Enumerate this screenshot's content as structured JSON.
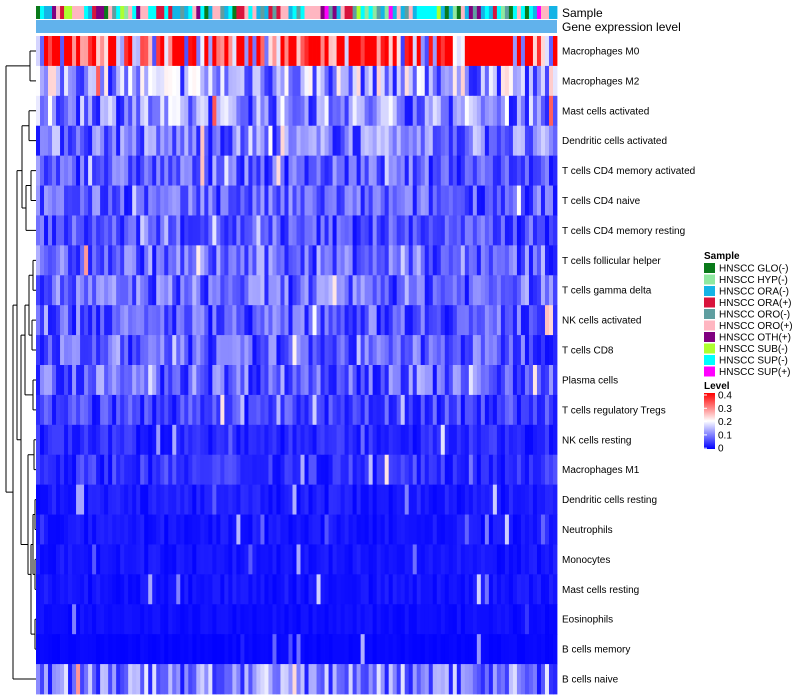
{
  "chart_data": {
    "type": "heatmap",
    "title": "",
    "annotation_rows": [
      "Sample",
      "Gene expression level"
    ],
    "rows": [
      {
        "label": "Macrophages M0",
        "mean": 0.33
      },
      {
        "label": "Macrophages M2",
        "mean": 0.13
      },
      {
        "label": "Mast cells activated",
        "mean": 0.11
      },
      {
        "label": "Dendritic cells activated",
        "mean": 0.09
      },
      {
        "label": "T cells CD4 memory activated",
        "mean": 0.07
      },
      {
        "label": "T cells CD4 naive",
        "mean": 0.07
      },
      {
        "label": "T cells CD4 memory resting",
        "mean": 0.06
      },
      {
        "label": "T cells follicular helper",
        "mean": 0.08
      },
      {
        "label": "T cells gamma delta",
        "mean": 0.08
      },
      {
        "label": "NK cells activated",
        "mean": 0.07
      },
      {
        "label": "T cells CD8",
        "mean": 0.07
      },
      {
        "label": "Plasma cells",
        "mean": 0.08
      },
      {
        "label": "T cells regulatory  Tregs",
        "mean": 0.05
      },
      {
        "label": "NK cells resting",
        "mean": 0.03
      },
      {
        "label": "Macrophages M1",
        "mean": 0.04
      },
      {
        "label": "Dendritic cells resting",
        "mean": 0.02
      },
      {
        "label": "Neutrophils",
        "mean": 0.015
      },
      {
        "label": "Monocytes",
        "mean": 0.015
      },
      {
        "label": "Mast cells resting",
        "mean": 0.015
      },
      {
        "label": "Eosinophils",
        "mean": 0.01
      },
      {
        "label": "B cells memory",
        "mean": 0.005
      },
      {
        "label": "B cells naive",
        "mean": 0.1
      }
    ],
    "n_samples": 130,
    "sample_groups": [
      {
        "label": "HNSCC GLO(-)",
        "color": "#0a7a1a"
      },
      {
        "label": "HNSCC HYP(-)",
        "color": "#8fe8a0"
      },
      {
        "label": "HNSCC ORA(-)",
        "color": "#14b4e6"
      },
      {
        "label": "HNSCC ORA(+)",
        "color": "#d8143c"
      },
      {
        "label": "HNSCC ORO(-)",
        "color": "#5f9ea0"
      },
      {
        "label": "HNSCC ORO(+)",
        "color": "#ffb6c1"
      },
      {
        "label": "HNSCC OTH(+)",
        "color": "#800080"
      },
      {
        "label": "HNSCC SUB(-)",
        "color": "#adff2f"
      },
      {
        "label": "HNSCC SUP(-)",
        "color": "#00ffff"
      },
      {
        "label": "HNSCC SUP(+)",
        "color": "#ff00ff"
      }
    ],
    "expression_level_color": "#61b2ec",
    "legend": {
      "sample_title": "Sample",
      "level_title": "Level",
      "level_ticks": [
        "0.4",
        "0.3",
        "0.2",
        "0.1",
        "0"
      ],
      "level_range": [
        0,
        0.4
      ],
      "colors": {
        "low": "#0000ff",
        "mid": "#ffffff",
        "high": "#ff0000"
      },
      "placement": "right"
    }
  }
}
